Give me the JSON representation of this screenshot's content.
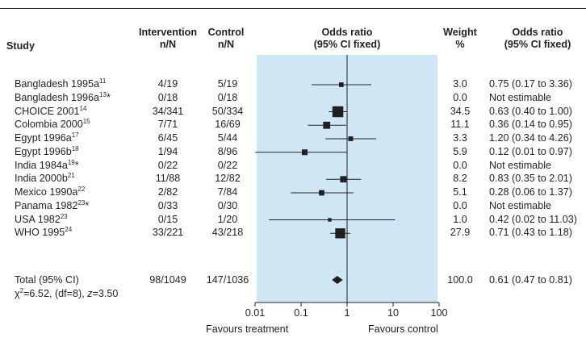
{
  "headers": {
    "study": "Study",
    "intervention": [
      "Intervention",
      "n/N"
    ],
    "control": [
      "Control",
      "n/N"
    ],
    "odds_plot": [
      "Odds ratio",
      "(95% CI fixed)"
    ],
    "weight": [
      "Weight",
      "%"
    ],
    "odds_text": [
      "Odds ratio",
      "(95% CI fixed)"
    ]
  },
  "rows": [
    {
      "name": "Bangladesh 1995a",
      "sup": "11",
      "star": "",
      "intervention": "4/19",
      "control": "5/19",
      "weight": "3.0",
      "or_text": "0.75 (0.17 to 3.36)"
    },
    {
      "name": "Bangladesh 1996a",
      "sup": "13",
      "star": "*",
      "intervention": "0/18",
      "control": "0/18",
      "weight": "0.0",
      "or_text": "Not estimable"
    },
    {
      "name": "CHOICE 2001",
      "sup": "14",
      "star": "",
      "intervention": "34/341",
      "control": "50/334",
      "weight": "34.5",
      "or_text": "0.63 (0.40 to 1.00)"
    },
    {
      "name": "Colombia 2000",
      "sup": "15",
      "star": "",
      "intervention": "7/71",
      "control": "16/69",
      "weight": "11.1",
      "or_text": "0.36 (0.14 to 0.95)"
    },
    {
      "name": "Egypt 1996a",
      "sup": "17",
      "star": "",
      "intervention": "6/45",
      "control": "5/44",
      "weight": "3.3",
      "or_text": "1.20 (0.34 to 4.26)"
    },
    {
      "name": "Egypt 1996b",
      "sup": "18",
      "star": "",
      "intervention": "1/94",
      "control": "8/96",
      "weight": "5.9",
      "or_text": "0.12 (0.01 to 0.97)"
    },
    {
      "name": "India 1984a",
      "sup": "19",
      "star": "*",
      "intervention": "0/22",
      "control": "0/22",
      "weight": "0.0",
      "or_text": "Not estimable"
    },
    {
      "name": "India 2000b",
      "sup": "21",
      "star": "",
      "intervention": "11/88",
      "control": "12/82",
      "weight": "8.2",
      "or_text": "0.83 (0.35 to 2.01)"
    },
    {
      "name": "Mexico 1990a",
      "sup": "22",
      "star": "",
      "intervention": "2/82",
      "control": "7/84",
      "weight": "5.1",
      "or_text": "0.28 (0.06 to 1.37)"
    },
    {
      "name": "Panama 1982",
      "sup": "23",
      "star": "*",
      "intervention": "0/33",
      "control": "0/30",
      "weight": "0.0",
      "or_text": "Not estimable"
    },
    {
      "name": "USA 1982",
      "sup": "23",
      "star": "",
      "intervention": "0/15",
      "control": "1/20",
      "weight": "1.0",
      "or_text": "0.42 (0.02 to 11.03)"
    },
    {
      "name": "WHO 1995",
      "sup": "24",
      "star": "",
      "intervention": "33/221",
      "control": "43/218",
      "weight": "27.9",
      "or_text": "0.71 (0.43 to 1.18)"
    }
  ],
  "total": {
    "name": "Total (95% CI)",
    "intervention": "98/1049",
    "control": "147/1036",
    "weight": "100.0",
    "or_text": "0.61 (0.47 to 0.81)"
  },
  "stats": {
    "chi": "χ",
    "chi_sup": "2",
    "chi_rest": "=6.52, (df=8), ",
    "z_var": "z",
    "z_rest": "=3.50"
  },
  "footer": {
    "favours_left": "Favours treatment",
    "favours_right": "Favours control"
  },
  "colors": {
    "panel": "#cfe6f5",
    "ink": "#231f20"
  },
  "chart_data": {
    "type": "forest",
    "scale": "log",
    "xlim": [
      0.01,
      100
    ],
    "tick_values": [
      0.01,
      0.1,
      1,
      10,
      100
    ],
    "tick_labels": [
      "0.01",
      "0.1",
      "1",
      "10",
      "100"
    ],
    "null_line": 1,
    "studies": [
      {
        "or": 0.75,
        "lo": 0.17,
        "hi": 3.36,
        "weight": 3.0
      },
      null,
      {
        "or": 0.63,
        "lo": 0.4,
        "hi": 1.0,
        "weight": 34.5
      },
      {
        "or": 0.36,
        "lo": 0.14,
        "hi": 0.95,
        "weight": 11.1
      },
      {
        "or": 1.2,
        "lo": 0.34,
        "hi": 4.26,
        "weight": 3.3
      },
      {
        "or": 0.12,
        "lo": 0.01,
        "hi": 0.97,
        "weight": 5.9
      },
      null,
      {
        "or": 0.83,
        "lo": 0.35,
        "hi": 2.01,
        "weight": 8.2
      },
      {
        "or": 0.28,
        "lo": 0.06,
        "hi": 1.37,
        "weight": 5.1
      },
      null,
      {
        "or": 0.42,
        "lo": 0.02,
        "hi": 11.03,
        "weight": 1.0
      },
      {
        "or": 0.71,
        "lo": 0.43,
        "hi": 1.18,
        "weight": 27.9
      }
    ],
    "total": {
      "or": 0.61,
      "lo": 0.47,
      "hi": 0.81
    }
  }
}
